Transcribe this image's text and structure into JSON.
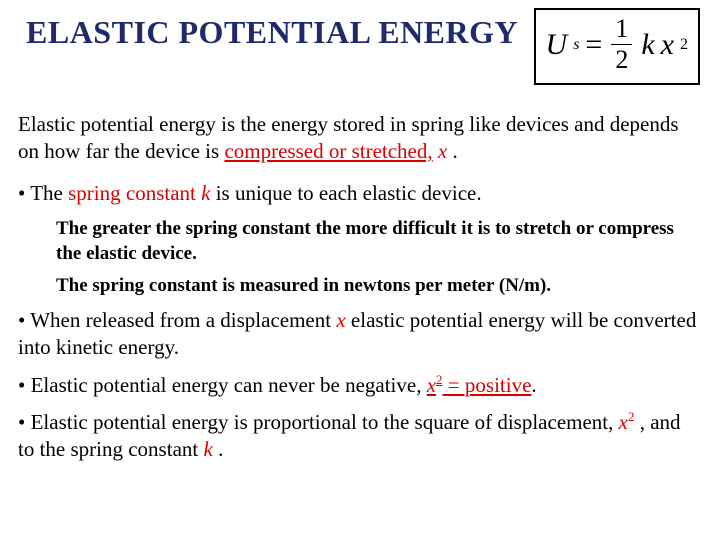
{
  "title": "ELASTIC POTENTIAL ENERGY",
  "formula": {
    "U": "U",
    "s": "s",
    "eq": "=",
    "num": "1",
    "den": "2",
    "k": "k",
    "x": "x",
    "sq": "2"
  },
  "intro": {
    "a": "Elastic potential energy is the energy stored in spring like devices and depends on how far the device is ",
    "b": "compressed or stretched,",
    "c": "x",
    "d": " ."
  },
  "b1": {
    "a": "• The ",
    "b": "spring constant",
    "c": "k",
    "d": "  is unique to each elastic device."
  },
  "sub1": "The greater the spring constant the more difficult it is to stretch or compress the elastic device.",
  "sub2": "The spring constant is measured in newtons per meter (N/m).",
  "b2": {
    "a": "• When released from a displacement ",
    "b": "x",
    "c": "  elastic potential energy will be converted into kinetic energy."
  },
  "b3": {
    "a": "• Elastic potential energy can never be negative, ",
    "b": "x",
    "c": "2",
    "d": " = positive",
    "e": "."
  },
  "b4": {
    "a": "• Elastic potential energy is proportional to the square of displacement, ",
    "b": "x",
    "c": "2",
    "d": " , and to the spring constant ",
    "e": "k",
    "f": " ."
  },
  "colors": {
    "title": "#1f2a6b",
    "red": "#d90000",
    "text": "#000000",
    "bg": "#ffffff"
  }
}
